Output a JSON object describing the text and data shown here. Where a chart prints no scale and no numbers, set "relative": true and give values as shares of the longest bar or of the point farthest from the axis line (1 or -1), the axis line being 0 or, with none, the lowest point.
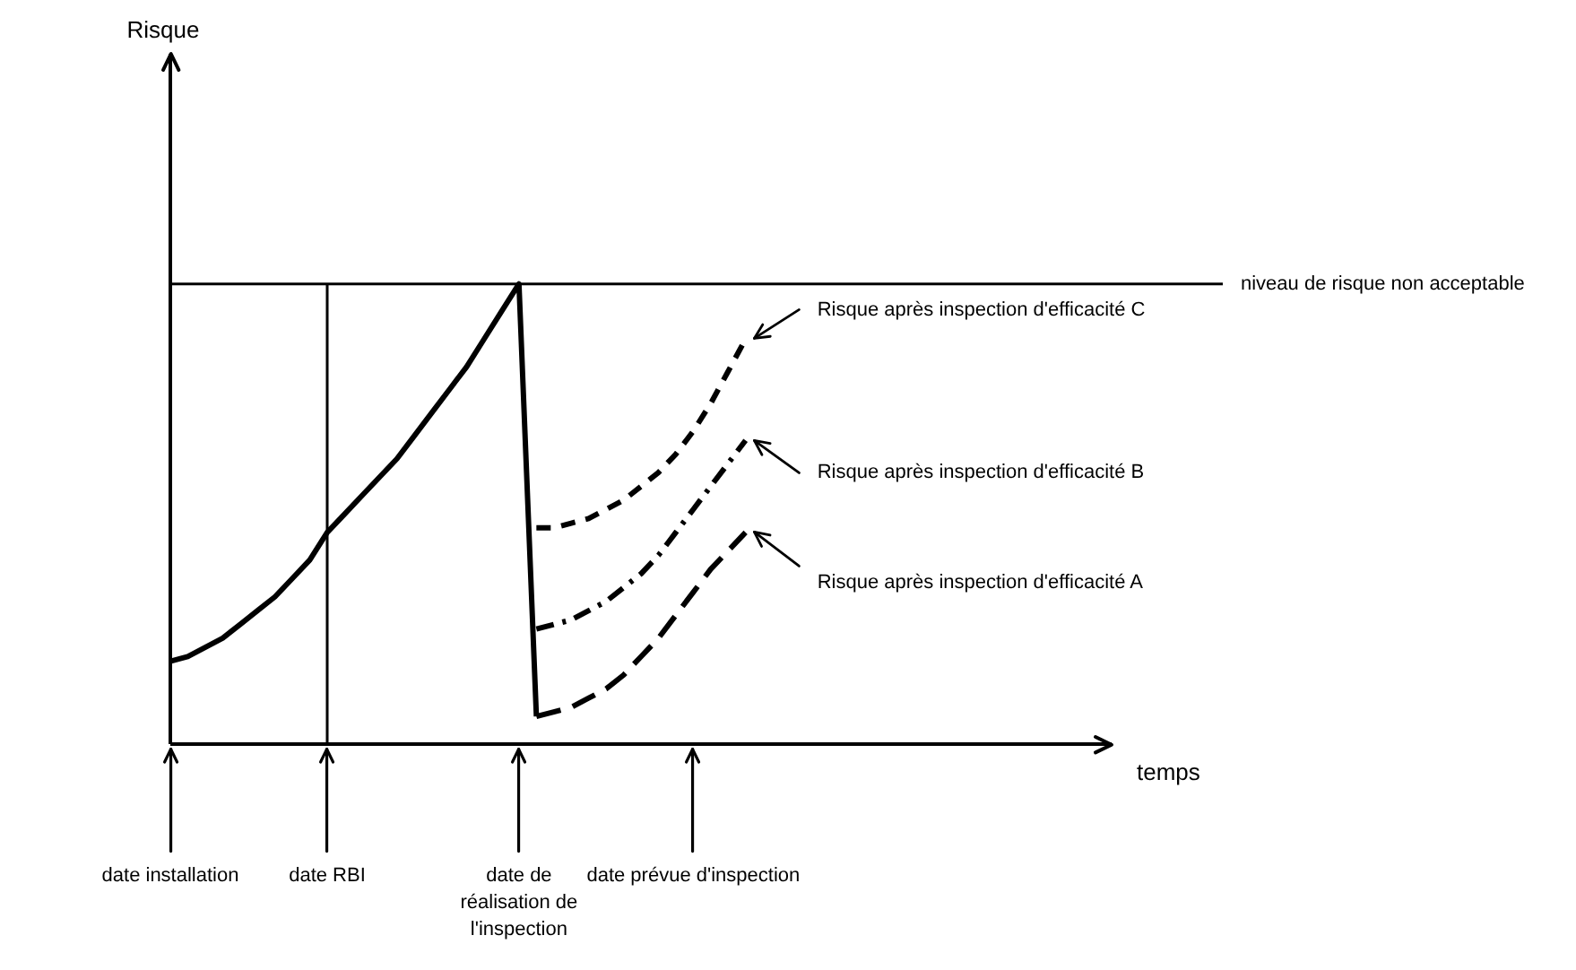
{
  "chart_data": {
    "type": "line",
    "relative": true,
    "xlabel": "temps",
    "annotations": [
      "Risque"
    ],
    "categories": [
      "date installation",
      null,
      null,
      null,
      null,
      null,
      null,
      null,
      null,
      "date RBI",
      null,
      null,
      null,
      null,
      null,
      null,
      null,
      null,
      null,
      null,
      "date de réalisation de l'inspection",
      null,
      null,
      null,
      null,
      null,
      null,
      null,
      null,
      null,
      "date prévue d'inspection",
      null,
      null,
      null,
      null,
      null,
      null,
      null,
      null,
      null,
      null,
      null,
      null,
      null,
      null,
      null,
      null,
      null,
      null,
      null,
      null,
      null,
      null,
      null,
      null
    ],
    "series": [
      {
        "color": "#000000",
        "line_style": "solid",
        "values": [
          0.18,
          0.19,
          0.21,
          0.23,
          0.26,
          0.29,
          0.32,
          0.36,
          0.4,
          0.46,
          0.5,
          0.54,
          0.58,
          0.62,
          0.67,
          0.72,
          0.77,
          0.82,
          0.88,
          0.94,
          1.0,
          0.06,
          null,
          null,
          null,
          null,
          null,
          null,
          null,
          null,
          null,
          null,
          null,
          null,
          null,
          null,
          null,
          null,
          null,
          null,
          null,
          null,
          null,
          null,
          null,
          null,
          null,
          null,
          null,
          null,
          null,
          null,
          null,
          null,
          null
        ]
      },
      {
        "name": "Risque après inspection d'efficacité C",
        "color": "#000000",
        "line_style": "dashed",
        "values": [
          null,
          null,
          null,
          null,
          null,
          null,
          null,
          null,
          null,
          null,
          null,
          null,
          null,
          null,
          null,
          null,
          null,
          null,
          null,
          null,
          null,
          0.47,
          0.47,
          0.48,
          0.49,
          0.51,
          0.53,
          0.56,
          0.59,
          0.63,
          0.68,
          0.74,
          0.81,
          0.88,
          null,
          null,
          null,
          null,
          null,
          null,
          null,
          null,
          null,
          null,
          null,
          null,
          null,
          null,
          null,
          null,
          null,
          null,
          null,
          null,
          null
        ]
      },
      {
        "name": "Risque après inspection d'efficacité B",
        "color": "#000000",
        "line_style": "dashdot",
        "values": [
          null,
          null,
          null,
          null,
          null,
          null,
          null,
          null,
          null,
          null,
          null,
          null,
          null,
          null,
          null,
          null,
          null,
          null,
          null,
          null,
          null,
          0.25,
          0.26,
          0.27,
          0.29,
          0.31,
          0.34,
          0.37,
          0.41,
          0.46,
          0.51,
          0.56,
          0.61,
          0.66,
          null,
          null,
          null,
          null,
          null,
          null,
          null,
          null,
          null,
          null,
          null,
          null,
          null,
          null,
          null,
          null,
          null,
          null,
          null,
          null,
          null
        ]
      },
      {
        "name": "Risque après inspection d'efficacité A",
        "color": "#000000",
        "line_style": "longdash",
        "values": [
          null,
          null,
          null,
          null,
          null,
          null,
          null,
          null,
          null,
          null,
          null,
          null,
          null,
          null,
          null,
          null,
          null,
          null,
          null,
          null,
          null,
          0.06,
          0.07,
          0.08,
          0.1,
          0.12,
          0.15,
          0.19,
          0.23,
          0.28,
          0.33,
          0.38,
          0.42,
          0.46,
          null,
          null,
          null,
          null,
          null,
          null,
          null,
          null,
          null,
          null,
          null,
          null,
          null,
          null,
          null,
          null,
          null,
          null,
          null,
          null,
          null
        ]
      }
    ],
    "ref_lines": [
      {
        "axis": "y",
        "value": 1.0,
        "label": "niveau de risque non acceptable"
      },
      {
        "axis": "x",
        "value": "date RBI"
      }
    ]
  }
}
